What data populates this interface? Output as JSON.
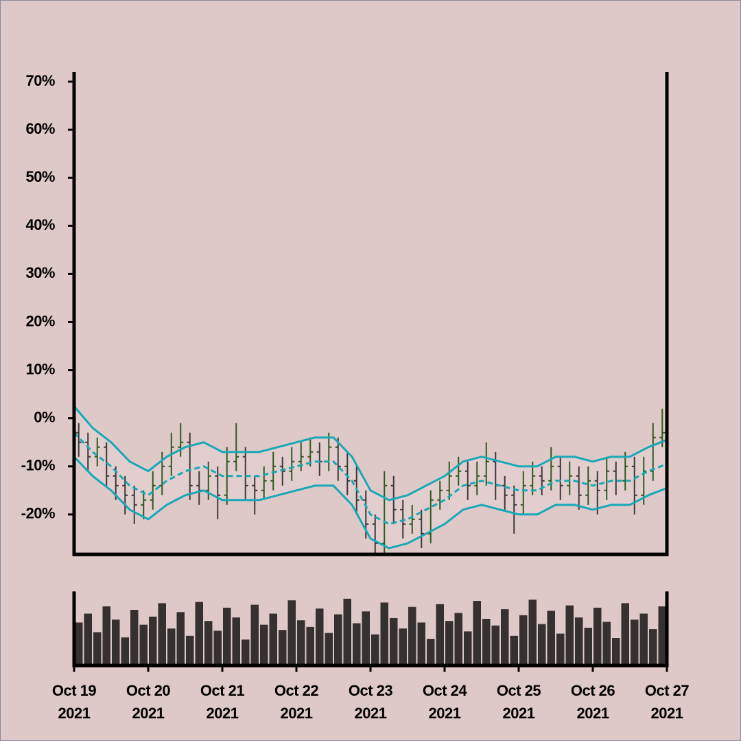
{
  "chart_data": {
    "type": "ohlc",
    "x": [
      "2021-10-19T00:00",
      "2021-10-19T03:00",
      "2021-10-19T06:00",
      "2021-10-19T09:00",
      "2021-10-19T12:00",
      "2021-10-19T15:00",
      "2021-10-19T18:00",
      "2021-10-19T21:00",
      "2021-10-20T00:00",
      "2021-10-20T03:00",
      "2021-10-20T06:00",
      "2021-10-20T09:00",
      "2021-10-20T12:00",
      "2021-10-20T15:00",
      "2021-10-20T18:00",
      "2021-10-20T21:00",
      "2021-10-21T00:00",
      "2021-10-21T03:00",
      "2021-10-21T06:00",
      "2021-10-21T09:00",
      "2021-10-21T12:00",
      "2021-10-21T15:00",
      "2021-10-21T18:00",
      "2021-10-21T21:00",
      "2021-10-22T00:00",
      "2021-10-22T03:00",
      "2021-10-22T06:00",
      "2021-10-22T09:00",
      "2021-10-22T12:00",
      "2021-10-22T15:00",
      "2021-10-22T18:00",
      "2021-10-22T21:00",
      "2021-10-23T00:00",
      "2021-10-23T03:00",
      "2021-10-23T06:00",
      "2021-10-23T09:00",
      "2021-10-23T12:00",
      "2021-10-23T15:00",
      "2021-10-23T18:00",
      "2021-10-23T21:00",
      "2021-10-24T00:00",
      "2021-10-24T03:00",
      "2021-10-24T06:00",
      "2021-10-24T09:00",
      "2021-10-24T12:00",
      "2021-10-24T15:00",
      "2021-10-24T18:00",
      "2021-10-24T21:00",
      "2021-10-25T00:00",
      "2021-10-25T03:00",
      "2021-10-25T06:00",
      "2021-10-25T09:00",
      "2021-10-25T12:00",
      "2021-10-25T15:00",
      "2021-10-25T18:00",
      "2021-10-25T21:00",
      "2021-10-26T00:00",
      "2021-10-26T03:00",
      "2021-10-26T06:00",
      "2021-10-26T09:00",
      "2021-10-26T12:00",
      "2021-10-26T15:00",
      "2021-10-26T18:00",
      "2021-10-26T21:00"
    ],
    "open": [
      -3,
      -5,
      -8,
      -6,
      -12,
      -14,
      -16,
      -18,
      -17,
      -14,
      -10,
      -6,
      -5,
      -14,
      -15,
      -12,
      -16,
      -9,
      -8,
      -14,
      -15,
      -13,
      -10,
      -11,
      -9,
      -8,
      -7,
      -9,
      -6,
      -10,
      -13,
      -17,
      -22,
      -26,
      -14,
      -19,
      -22,
      -21,
      -24,
      -17,
      -15,
      -12,
      -11,
      -14,
      -12,
      -9,
      -14,
      -16,
      -18,
      -14,
      -12,
      -13,
      -10,
      -14,
      -12,
      -16,
      -13,
      -15,
      -11,
      -13,
      -10,
      -16,
      -11,
      -4
    ],
    "high": [
      -1,
      -3,
      -4,
      -5,
      -10,
      -12,
      -14,
      -15,
      -11,
      -7,
      -3,
      -1,
      -3,
      -11,
      -9,
      -10,
      -6,
      -1,
      -6,
      -12,
      -10,
      -7,
      -8,
      -6,
      -5,
      -4,
      -5,
      -3,
      -4,
      -7,
      -10,
      -15,
      -20,
      -11,
      -12,
      -17,
      -18,
      -19,
      -15,
      -13,
      -9,
      -8,
      -9,
      -9,
      -5,
      -7,
      -12,
      -14,
      -11,
      -9,
      -10,
      -6,
      -8,
      -9,
      -10,
      -10,
      -11,
      -8,
      -9,
      -7,
      -8,
      -8,
      -1,
      2
    ],
    "low": [
      -8,
      -11,
      -10,
      -14,
      -17,
      -20,
      -22,
      -21,
      -19,
      -16,
      -12,
      -8,
      -17,
      -18,
      -17,
      -21,
      -18,
      -11,
      -17,
      -20,
      -17,
      -15,
      -14,
      -13,
      -11,
      -10,
      -12,
      -11,
      -13,
      -16,
      -20,
      -25,
      -28,
      -28,
      -22,
      -25,
      -24,
      -27,
      -26,
      -19,
      -17,
      -14,
      -17,
      -16,
      -14,
      -17,
      -19,
      -24,
      -20,
      -16,
      -16,
      -15,
      -17,
      -16,
      -19,
      -18,
      -20,
      -17,
      -16,
      -15,
      -20,
      -18,
      -13,
      -6
    ],
    "close": [
      -5,
      -8,
      -6,
      -12,
      -14,
      -16,
      -18,
      -17,
      -14,
      -10,
      -6,
      -5,
      -14,
      -15,
      -12,
      -16,
      -9,
      -8,
      -14,
      -15,
      -13,
      -10,
      -11,
      -9,
      -8,
      -7,
      -9,
      -6,
      -10,
      -13,
      -17,
      -22,
      -26,
      -14,
      -19,
      -22,
      -21,
      -24,
      -17,
      -15,
      -12,
      -11,
      -14,
      -12,
      -9,
      -14,
      -16,
      -18,
      -14,
      -12,
      -13,
      -10,
      -14,
      -12,
      -16,
      -13,
      -15,
      -11,
      -13,
      -10,
      -16,
      -11,
      -4,
      -3
    ],
    "up_color": "#2f5a1e",
    "down_color": "#3d3838",
    "xlim": [
      "2021-10-19T00:00",
      "2021-10-27T00:00"
    ],
    "xticks": [
      {
        "value": "2021-10-19T00:00",
        "label": [
          "Oct 19",
          "2021"
        ]
      },
      {
        "value": "2021-10-20T00:00",
        "label": [
          "Oct 20",
          "2021"
        ]
      },
      {
        "value": "2021-10-21T00:00",
        "label": [
          "Oct 21",
          "2021"
        ]
      },
      {
        "value": "2021-10-22T00:00",
        "label": [
          "Oct 22",
          "2021"
        ]
      },
      {
        "value": "2021-10-23T00:00",
        "label": [
          "Oct 23",
          "2021"
        ]
      },
      {
        "value": "2021-10-24T00:00",
        "label": [
          "Oct 24",
          "2021"
        ]
      },
      {
        "value": "2021-10-25T00:00",
        "label": [
          "Oct 25",
          "2021"
        ]
      },
      {
        "value": "2021-10-26T00:00",
        "label": [
          "Oct 26",
          "2021"
        ]
      },
      {
        "value": "2021-10-27T00:00",
        "label": [
          "Oct 27",
          "2021"
        ]
      }
    ],
    "ylim": [
      -28.3,
      72
    ],
    "yticks": [
      {
        "value": -20,
        "label": "-20%"
      },
      {
        "value": -10,
        "label": "-10%"
      },
      {
        "value": 0,
        "label": "0%"
      },
      {
        "value": 10,
        "label": "10%"
      },
      {
        "value": 20,
        "label": "20%"
      },
      {
        "value": 30,
        "label": "30%"
      },
      {
        "value": 40,
        "label": "40%"
      },
      {
        "value": 50,
        "label": "50%"
      },
      {
        "value": 60,
        "label": "60%"
      },
      {
        "value": 70,
        "label": "70%"
      }
    ],
    "bands": {
      "color": "#17a9b5",
      "x": [
        "2021-10-19T00:00",
        "2021-10-19T06:00",
        "2021-10-19T12:00",
        "2021-10-19T18:00",
        "2021-10-20T00:00",
        "2021-10-20T06:00",
        "2021-10-20T12:00",
        "2021-10-20T18:00",
        "2021-10-21T00:00",
        "2021-10-21T06:00",
        "2021-10-21T12:00",
        "2021-10-21T18:00",
        "2021-10-22T00:00",
        "2021-10-22T06:00",
        "2021-10-22T12:00",
        "2021-10-22T18:00",
        "2021-10-23T00:00",
        "2021-10-23T06:00",
        "2021-10-23T12:00",
        "2021-10-23T18:00",
        "2021-10-24T00:00",
        "2021-10-24T06:00",
        "2021-10-24T12:00",
        "2021-10-24T18:00",
        "2021-10-25T00:00",
        "2021-10-25T06:00",
        "2021-10-25T12:00",
        "2021-10-25T18:00",
        "2021-10-26T00:00",
        "2021-10-26T06:00",
        "2021-10-26T12:00",
        "2021-10-26T18:00",
        "2021-10-27T00:00"
      ],
      "upper": [
        2.5,
        -2,
        -5,
        -9,
        -11,
        -8,
        -6,
        -5,
        -7,
        -7,
        -7,
        -6,
        -5,
        -4,
        -4,
        -8,
        -15,
        -17,
        -16,
        -14,
        -12,
        -9,
        -8,
        -9,
        -10,
        -10,
        -8,
        -8,
        -9,
        -8,
        -8,
        -6,
        -4.5
      ],
      "middle": [
        -3,
        -7,
        -10,
        -14,
        -16,
        -13,
        -11,
        -10,
        -12,
        -12,
        -12,
        -11,
        -10,
        -9,
        -9,
        -13,
        -20,
        -22,
        -21,
        -19,
        -17,
        -14,
        -13,
        -14,
        -15,
        -15,
        -13,
        -13,
        -14,
        -13,
        -13,
        -11,
        -9.5
      ],
      "lower": [
        -8,
        -12,
        -15,
        -19,
        -21,
        -18,
        -16,
        -15,
        -17,
        -17,
        -17,
        -16,
        -15,
        -14,
        -14,
        -18,
        -25,
        -27,
        -26,
        -24,
        -22,
        -19,
        -18,
        -19,
        -20,
        -20,
        -18,
        -18,
        -19,
        -18,
        -18,
        -16,
        -14.5
      ]
    },
    "volume": {
      "color": "#353131",
      "ylim": [
        0,
        100
      ],
      "values": [
        58,
        70,
        45,
        80,
        62,
        38,
        75,
        55,
        66,
        84,
        50,
        72,
        40,
        86,
        60,
        47,
        78,
        65,
        35,
        82,
        55,
        70,
        48,
        88,
        61,
        52,
        77,
        44,
        69,
        90,
        57,
        73,
        42,
        85,
        64,
        50,
        79,
        58,
        36,
        83,
        60,
        71,
        46,
        87,
        63,
        54,
        76,
        40,
        68,
        89,
        56,
        74,
        43,
        81,
        65,
        51,
        78,
        59,
        37,
        84,
        62,
        70,
        49,
        80
      ]
    }
  }
}
